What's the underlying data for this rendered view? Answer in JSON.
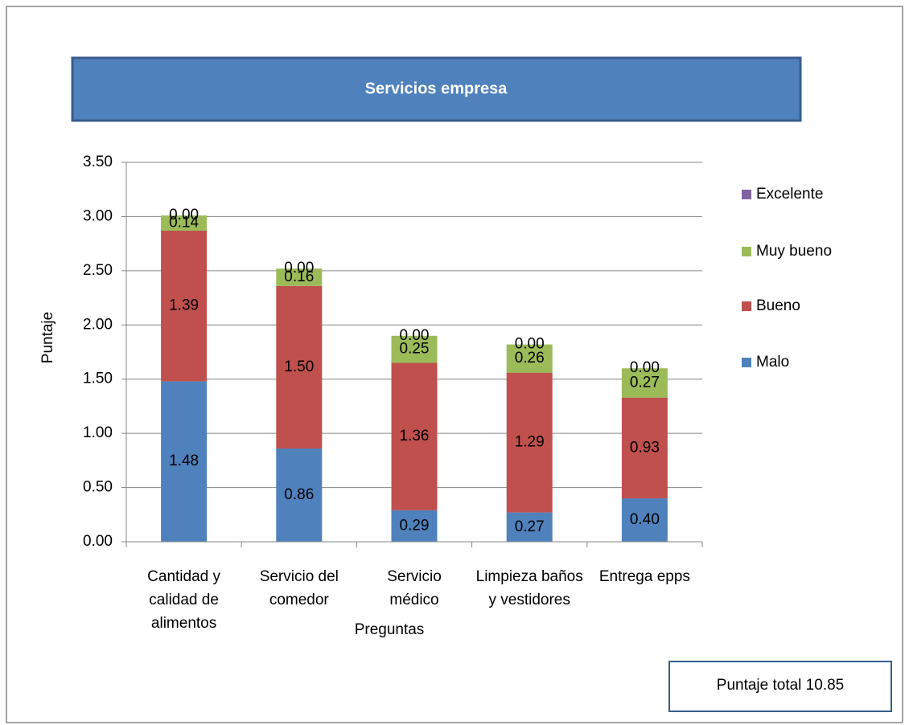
{
  "chart_data": {
    "type": "stacked_bar",
    "title": "Servicios empresa",
    "categories": [
      "Cantidad y calidad de alimentos",
      "Servicio del comedor",
      "Servicio médico",
      "Limpieza baños y vestidores",
      "Entrega epps"
    ],
    "series": [
      {
        "name": "Malo",
        "color": "#4f81bd",
        "values": [
          1.48,
          0.86,
          0.29,
          0.27,
          0.4
        ],
        "value_labels": [
          "1.48",
          "0.86",
          "0.29",
          "0.27",
          "0.40"
        ]
      },
      {
        "name": "Bueno",
        "color": "#c0504d",
        "values": [
          1.39,
          1.5,
          1.36,
          1.29,
          0.93
        ],
        "value_labels": [
          "1.39",
          "1.50",
          "1.36",
          "1.29",
          "0.93"
        ]
      },
      {
        "name": "Muy bueno",
        "color": "#9bbb59",
        "values": [
          0.14,
          0.16,
          0.25,
          0.26,
          0.27
        ],
        "value_labels": [
          "0.14",
          "0.16",
          "0.25",
          "0.26",
          "0.27"
        ]
      },
      {
        "name": "Excelente",
        "color": "#8064a2",
        "values": [
          0,
          0,
          0,
          0,
          0
        ],
        "value_labels": [
          "0.00",
          "0.00",
          "0.00",
          "0.00",
          "0.00"
        ]
      }
    ],
    "ylim": [
      0,
      3.5
    ],
    "yticks": [
      {
        "value": 0,
        "label": "0.00"
      },
      {
        "value": 0.5,
        "label": "0.50"
      },
      {
        "value": 1,
        "label": "1.00"
      },
      {
        "value": 1.5,
        "label": "1.50"
      },
      {
        "value": 2,
        "label": "2.00"
      },
      {
        "value": 2.5,
        "label": "2.50"
      },
      {
        "value": 3,
        "label": "3.00"
      },
      {
        "value": 3.5,
        "label": "3.50"
      }
    ],
    "y_label": "Puntaje",
    "x_label": "Preguntas",
    "annotation": "Puntaje total 10.85",
    "grid": true,
    "legend": "right"
  }
}
